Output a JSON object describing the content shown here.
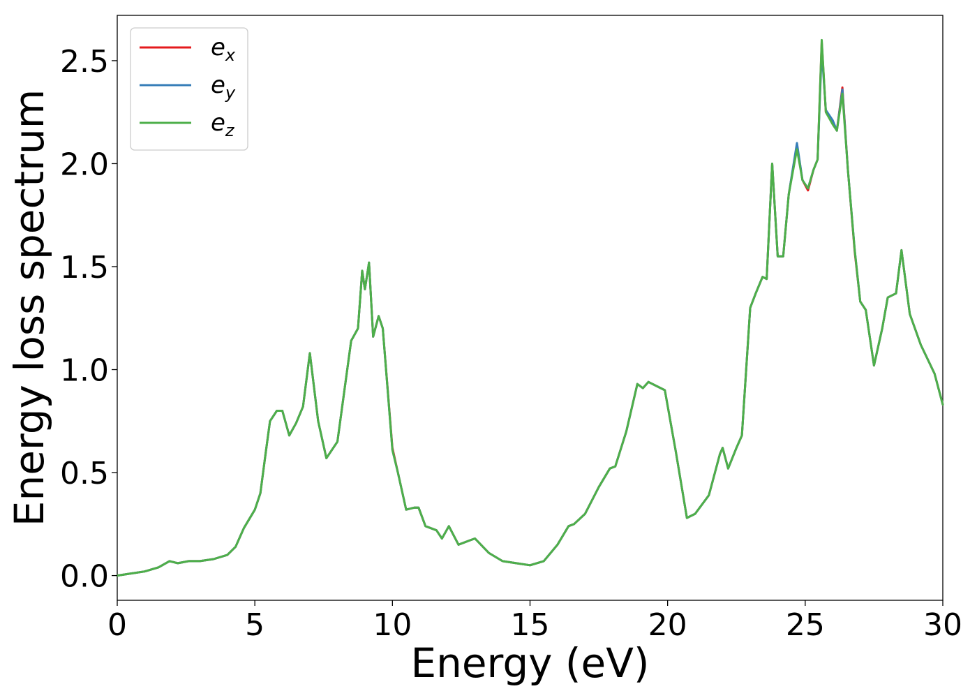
{
  "chart_data": {
    "type": "line",
    "title": "",
    "xlabel": "Energy (eV)",
    "ylabel": "Energy loss spectrum",
    "xlim": [
      0,
      30
    ],
    "ylim": [
      -0.12,
      2.72
    ],
    "xticks": [
      0,
      5,
      10,
      15,
      20,
      25,
      30
    ],
    "xtick_labels": [
      "0",
      "5",
      "10",
      "15",
      "20",
      "25",
      "30"
    ],
    "yticks": [
      0.0,
      0.5,
      1.0,
      1.5,
      2.0,
      2.5
    ],
    "ytick_labels": [
      "0.0",
      "0.5",
      "1.0",
      "1.5",
      "2.0",
      "2.5"
    ],
    "grid": false,
    "legend_position": "top-left",
    "x": [
      0,
      0.5,
      1.0,
      1.5,
      1.9,
      2.2,
      2.6,
      3.0,
      3.5,
      4.0,
      4.3,
      4.6,
      5.0,
      5.2,
      5.4,
      5.55,
      5.8,
      6.0,
      6.25,
      6.5,
      6.75,
      7.0,
      7.3,
      7.6,
      8.0,
      8.5,
      8.75,
      8.9,
      9.0,
      9.15,
      9.3,
      9.5,
      9.65,
      10.0,
      10.2,
      10.5,
      10.8,
      10.95,
      11.2,
      11.6,
      11.8,
      12.05,
      12.4,
      12.8,
      13.0,
      13.5,
      14.0,
      14.5,
      15.0,
      15.5,
      16.0,
      16.4,
      16.6,
      17.0,
      17.5,
      17.9,
      18.1,
      18.5,
      18.9,
      19.1,
      19.3,
      19.6,
      19.9,
      20.3,
      20.7,
      21.0,
      21.5,
      21.9,
      22.0,
      22.2,
      22.5,
      22.7,
      23.0,
      23.2,
      23.45,
      23.6,
      23.8,
      24.0,
      24.2,
      24.4,
      24.7,
      24.9,
      25.1,
      25.3,
      25.45,
      25.6,
      25.75,
      26.0,
      26.15,
      26.35,
      26.55,
      26.8,
      27.0,
      27.2,
      27.5,
      27.8,
      28.0,
      28.3,
      28.5,
      28.8,
      29.2,
      29.7,
      30.0
    ],
    "series": [
      {
        "name": "e_x",
        "color": "#e41a1c",
        "values": [
          0.0,
          0.01,
          0.02,
          0.04,
          0.07,
          0.06,
          0.07,
          0.07,
          0.08,
          0.1,
          0.14,
          0.23,
          0.32,
          0.4,
          0.6,
          0.75,
          0.8,
          0.8,
          0.68,
          0.74,
          0.82,
          1.08,
          0.75,
          0.57,
          0.65,
          1.14,
          1.2,
          1.48,
          1.39,
          1.52,
          1.16,
          1.26,
          1.2,
          0.62,
          0.5,
          0.32,
          0.33,
          0.33,
          0.24,
          0.22,
          0.18,
          0.24,
          0.15,
          0.17,
          0.18,
          0.11,
          0.07,
          0.06,
          0.05,
          0.07,
          0.15,
          0.24,
          0.25,
          0.3,
          0.43,
          0.52,
          0.53,
          0.7,
          0.93,
          0.91,
          0.94,
          0.92,
          0.9,
          0.6,
          0.28,
          0.3,
          0.39,
          0.59,
          0.62,
          0.52,
          0.62,
          0.68,
          1.3,
          1.37,
          1.45,
          1.44,
          2.0,
          1.55,
          1.55,
          1.85,
          2.09,
          1.92,
          1.87,
          1.97,
          2.02,
          2.59,
          2.25,
          2.2,
          2.16,
          2.37,
          1.97,
          1.57,
          1.33,
          1.29,
          1.02,
          1.2,
          1.35,
          1.37,
          1.58,
          1.27,
          1.12,
          0.98,
          0.83
        ]
      },
      {
        "name": "e_y",
        "color": "#377eb8",
        "values": [
          0.0,
          0.01,
          0.02,
          0.04,
          0.07,
          0.06,
          0.07,
          0.07,
          0.08,
          0.1,
          0.14,
          0.23,
          0.32,
          0.4,
          0.6,
          0.75,
          0.8,
          0.8,
          0.68,
          0.74,
          0.82,
          1.08,
          0.75,
          0.57,
          0.65,
          1.14,
          1.2,
          1.48,
          1.39,
          1.52,
          1.16,
          1.26,
          1.2,
          0.61,
          0.5,
          0.32,
          0.33,
          0.33,
          0.24,
          0.22,
          0.18,
          0.24,
          0.15,
          0.17,
          0.18,
          0.11,
          0.07,
          0.06,
          0.05,
          0.07,
          0.15,
          0.24,
          0.25,
          0.3,
          0.43,
          0.52,
          0.53,
          0.7,
          0.93,
          0.91,
          0.94,
          0.92,
          0.9,
          0.6,
          0.28,
          0.3,
          0.39,
          0.59,
          0.62,
          0.52,
          0.62,
          0.68,
          1.3,
          1.37,
          1.45,
          1.44,
          2.0,
          1.55,
          1.55,
          1.85,
          2.1,
          1.92,
          1.88,
          1.97,
          2.02,
          2.55,
          2.26,
          2.21,
          2.16,
          2.36,
          1.97,
          1.58,
          1.33,
          1.29,
          1.02,
          1.2,
          1.35,
          1.37,
          1.58,
          1.27,
          1.12,
          0.98,
          0.83
        ]
      },
      {
        "name": "e_z",
        "color": "#4daf4a",
        "values": [
          0.0,
          0.01,
          0.02,
          0.04,
          0.07,
          0.06,
          0.07,
          0.07,
          0.08,
          0.1,
          0.14,
          0.23,
          0.32,
          0.4,
          0.6,
          0.75,
          0.8,
          0.8,
          0.68,
          0.74,
          0.82,
          1.08,
          0.75,
          0.57,
          0.65,
          1.14,
          1.2,
          1.48,
          1.39,
          1.52,
          1.16,
          1.26,
          1.2,
          0.61,
          0.5,
          0.32,
          0.33,
          0.33,
          0.24,
          0.22,
          0.18,
          0.24,
          0.15,
          0.17,
          0.18,
          0.11,
          0.07,
          0.06,
          0.05,
          0.07,
          0.15,
          0.24,
          0.25,
          0.3,
          0.43,
          0.52,
          0.53,
          0.7,
          0.93,
          0.91,
          0.94,
          0.92,
          0.9,
          0.6,
          0.28,
          0.3,
          0.39,
          0.59,
          0.62,
          0.52,
          0.62,
          0.68,
          1.3,
          1.37,
          1.45,
          1.44,
          2.0,
          1.55,
          1.55,
          1.85,
          2.07,
          1.92,
          1.88,
          1.97,
          2.02,
          2.6,
          2.25,
          2.19,
          2.16,
          2.34,
          1.97,
          1.58,
          1.33,
          1.29,
          1.02,
          1.2,
          1.35,
          1.37,
          1.58,
          1.27,
          1.12,
          0.98,
          0.83
        ]
      }
    ]
  }
}
